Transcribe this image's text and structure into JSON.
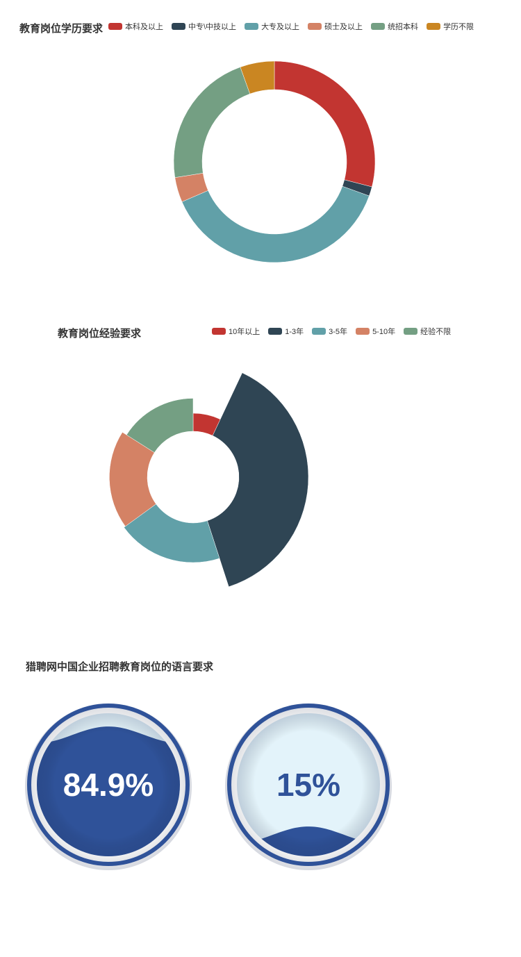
{
  "charts": {
    "education": {
      "title": "教育岗位学历要求",
      "legend": [
        {
          "name": "本科及以上",
          "color": "#c23531"
        },
        {
          "name": "中专\\中技以上",
          "color": "#2f4554"
        },
        {
          "name": "大专及以上",
          "color": "#61a0a8"
        },
        {
          "name": "硕士及以上",
          "color": "#d48265"
        },
        {
          "name": "统招本科",
          "color": "#749f83"
        },
        {
          "name": "学历不限",
          "color": "#ca8622"
        }
      ]
    },
    "experience": {
      "title": "教育岗位经验要求",
      "legend": [
        {
          "name": "10年以上",
          "color": "#c23531"
        },
        {
          "name": "1-3年",
          "color": "#2f4554"
        },
        {
          "name": "3-5年",
          "color": "#61a0a8"
        },
        {
          "name": "5-10年",
          "color": "#d48265"
        },
        {
          "name": "经验不限",
          "color": "#749f83"
        }
      ]
    },
    "language": {
      "title": "猎聘网中国企业招聘教育岗位的语言要求",
      "gauges": [
        {
          "label": "84.9%",
          "value": 0.849,
          "fill_color": "#2f5299",
          "bg_color": "#e3f3fa",
          "ring_color": "#2f5299",
          "text_color": "#ffffff"
        },
        {
          "label": "15%",
          "value": 0.15,
          "fill_color": "#2f5299",
          "bg_color": "#e3f3fa",
          "ring_color": "#2f5299",
          "text_color": "#2f5299"
        }
      ]
    }
  },
  "chart_data": [
    {
      "type": "pie",
      "subtype": "donut",
      "title": "教育岗位学历要求",
      "legend_position": "top",
      "categories": [
        "本科及以上",
        "中专\\中技以上",
        "大专及以上",
        "硕士及以上",
        "统招本科",
        "学历不限"
      ],
      "values": [
        29,
        1.5,
        38,
        4,
        22,
        5.5
      ],
      "colors": [
        "#c23531",
        "#2f4554",
        "#61a0a8",
        "#d48265",
        "#749f83",
        "#ca8622"
      ]
    },
    {
      "type": "pie",
      "subtype": "nightingale-radius",
      "title": "教育岗位经验要求",
      "legend_position": "top-right",
      "categories": [
        "10年以上",
        "1-3年",
        "3-5年",
        "5-10年",
        "经验不限"
      ],
      "values": [
        7,
        38,
        20,
        19,
        16
      ],
      "colors": [
        "#c23531",
        "#2f4554",
        "#61a0a8",
        "#d48265",
        "#749f83"
      ]
    },
    {
      "type": "gauge",
      "subtype": "liquid-fill",
      "title": "猎聘网中国企业招聘教育岗位的语言要求",
      "categories": [
        "84.9%",
        "15%"
      ],
      "values": [
        0.849,
        0.15
      ]
    }
  ]
}
